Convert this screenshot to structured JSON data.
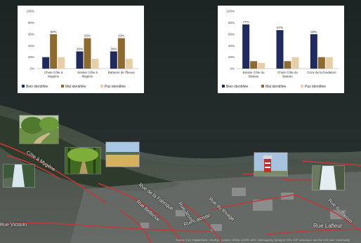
{
  "charts": {
    "left": {
      "type": "bar",
      "ylim": [
        0,
        100
      ],
      "y_ticks": [
        "100%",
        "80%",
        "60%",
        "40%",
        "20%",
        "0%"
      ],
      "categories": [
        [
          "Chute Côte à",
          "Mygène"
        ],
        [
          "Sentier Côte à",
          "Mygène"
        ],
        [
          "Battures de l'fleuve"
        ]
      ],
      "series": [
        {
          "name": "Bien identifiée",
          "color": "#1f2a5e",
          "values": [
            20,
            30,
            30
          ]
        },
        {
          "name": "Mal identifiée",
          "color": "#8d6a2e",
          "values": [
            60,
            53,
            53
          ]
        },
        {
          "name": "Pas identifiée",
          "color": "#e6cfa8",
          "values": [
            20,
            17,
            17
          ]
        }
      ],
      "data_labels": [
        [
          null,
          "60%",
          null
        ],
        [
          "30%",
          "53%",
          null
        ],
        [
          "30%",
          "53%",
          null
        ]
      ]
    },
    "right": {
      "type": "bar",
      "ylim": [
        0,
        100
      ],
      "y_ticks": [
        "100%",
        "80%",
        "60%",
        "40%",
        "20%",
        "0%"
      ],
      "categories": [
        [
          "Boisée Côte du",
          "Bateau"
        ],
        [
          "Chute Côte du",
          "Bateau"
        ],
        [
          "Croix de la fondation"
        ]
      ],
      "series": [
        {
          "name": "Bien identifiée",
          "color": "#1f2a5e",
          "values": [
            77,
            67,
            60
          ]
        },
        {
          "name": "Mal identifiée",
          "color": "#8d6a2e",
          "values": [
            13,
            13,
            20
          ]
        },
        {
          "name": "Pas identifiée",
          "color": "#e6cfa8",
          "values": [
            10,
            20,
            20
          ]
        }
      ],
      "data_labels": [
        [
          "77%",
          null,
          null
        ],
        [
          "67%",
          null,
          null
        ],
        [
          "60%",
          null,
          null
        ]
      ]
    }
  },
  "map": {
    "streets": {
      "cote_a_mygene": "Côte à Mygène",
      "rue_fabrique": "Rue de la Fabrique",
      "rue_bellerive": "Rue Bellerive",
      "rue_jessie": "Rue Jessie",
      "rue_du_rivage": "Rue du Rivage",
      "rue_du_bassin": "Rue du Bassin",
      "rue_lafleur": "Rue Lafleur",
      "rue_victorin": "Rue Victorin",
      "rue_lalonde": "Rue Lalonde"
    },
    "attribution": "Source: Esri, DigitalGlobe, GeoEye, i-cubed, USDA, USGS, AEX, Getmapping, Aerogrid, IGN, IGP, swisstopo, and the GIS User Community"
  }
}
